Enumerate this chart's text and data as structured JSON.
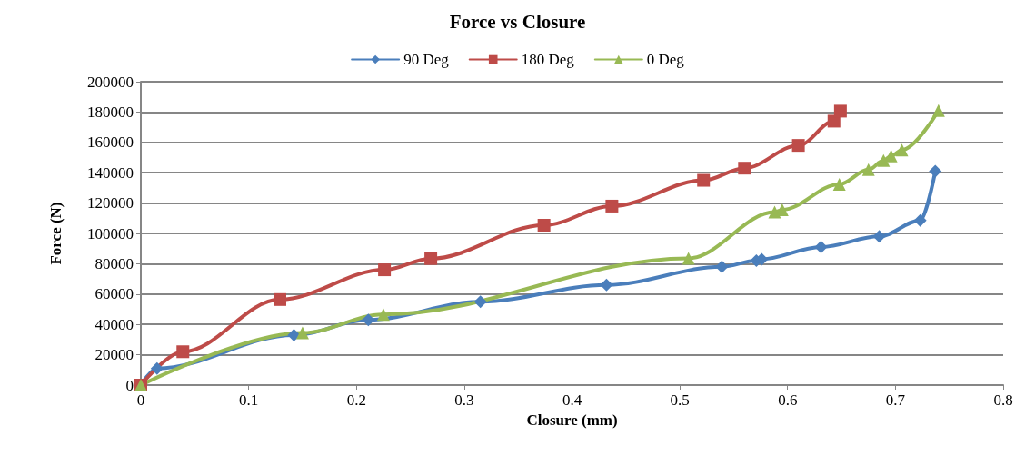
{
  "chart_data": {
    "type": "line",
    "title": "Force vs Closure",
    "xlabel": "Closure (mm)",
    "ylabel": "Force (N)",
    "xlim": [
      0,
      0.8
    ],
    "xticks": [
      0,
      0.1,
      0.2,
      0.3,
      0.4,
      0.5,
      0.6,
      0.7,
      0.8
    ],
    "ylim": [
      0,
      200000
    ],
    "yticks": [
      0,
      20000,
      40000,
      60000,
      80000,
      100000,
      120000,
      140000,
      160000,
      180000,
      200000
    ],
    "grid": "y",
    "legend": "top",
    "line_style": "solid",
    "series": [
      {
        "name": "90 Deg",
        "color": "#4a7ebb",
        "marker": "diamond",
        "x": [
          0,
          0.015,
          0.142,
          0.211,
          0.315,
          0.432,
          0.539,
          0.571,
          0.576,
          0.631,
          0.685,
          0.723,
          0.737
        ],
        "values": [
          0,
          11000,
          33000,
          43000,
          55000,
          66000,
          78000,
          82000,
          83000,
          91000,
          98000,
          108600,
          141000
        ]
      },
      {
        "name": "180 Deg",
        "color": "#be4b48",
        "marker": "square",
        "x": [
          0,
          0.039,
          0.129,
          0.226,
          0.269,
          0.374,
          0.437,
          0.522,
          0.56,
          0.61,
          0.643,
          0.649
        ],
        "values": [
          0,
          22000,
          56400,
          76000,
          83400,
          105400,
          118000,
          135000,
          143000,
          158000,
          174000,
          180600
        ]
      },
      {
        "name": "0 Deg",
        "color": "#98b954",
        "marker": "triangle",
        "x": [
          0,
          0.15,
          0.225,
          0.508,
          0.588,
          0.595,
          0.648,
          0.675,
          0.689,
          0.696,
          0.706,
          0.74
        ],
        "values": [
          0,
          34400,
          46600,
          83600,
          114000,
          115600,
          132400,
          142000,
          148000,
          151000,
          155000,
          181000
        ]
      }
    ]
  }
}
